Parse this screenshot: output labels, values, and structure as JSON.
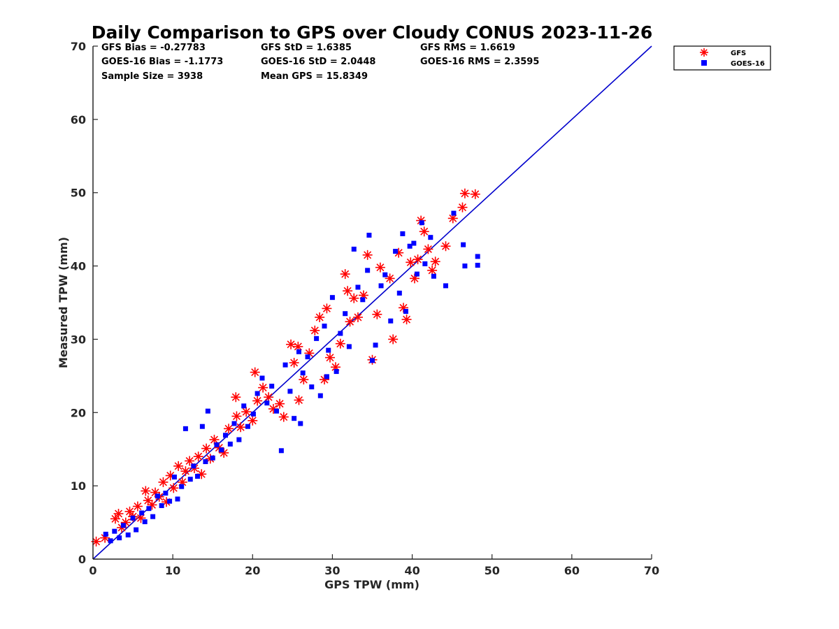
{
  "chart_data": {
    "type": "scatter",
    "title": "Daily Comparison to GPS over Cloudy CONUS 2023-11-26",
    "xlabel": "GPS TPW (mm)",
    "ylabel": "Measured TPW (mm)",
    "xlim": [
      0,
      70
    ],
    "ylim": [
      0,
      70
    ],
    "xticks": [
      "0",
      "10",
      "20",
      "30",
      "40",
      "50",
      "60",
      "70"
    ],
    "yticks": [
      "0",
      "10",
      "20",
      "30",
      "40",
      "50",
      "60",
      "70"
    ],
    "grid": false,
    "legend_position": "outside top-right",
    "stats": [
      [
        "GFS Bias = -0.27783",
        "GFS StD = 1.6385",
        "GFS RMS = 1.6619"
      ],
      [
        "GOES-16 Bias = -1.1773",
        "GOES-16 StD = 2.0448",
        "GOES-16 RMS = 2.3595"
      ],
      [
        "Sample Size = 3938",
        "Mean GPS = 15.8349",
        ""
      ]
    ],
    "reference_line": {
      "x": [
        0,
        70
      ],
      "y": [
        0,
        70
      ],
      "color": "#0000cc"
    },
    "series": [
      {
        "name": "GFS",
        "marker": "asterisk",
        "color": "#ff0000",
        "points": [
          [
            0.4,
            2.4
          ],
          [
            1.5,
            2.9
          ],
          [
            2.8,
            5.5
          ],
          [
            3.2,
            6.2
          ],
          [
            3.6,
            4.3
          ],
          [
            4.1,
            5.0
          ],
          [
            4.6,
            6.5
          ],
          [
            5.0,
            5.8
          ],
          [
            5.6,
            7.2
          ],
          [
            6.0,
            5.6
          ],
          [
            6.6,
            9.3
          ],
          [
            6.9,
            8.0
          ],
          [
            7.4,
            7.4
          ],
          [
            7.8,
            9.1
          ],
          [
            8.3,
            8.5
          ],
          [
            8.8,
            10.5
          ],
          [
            9.2,
            7.8
          ],
          [
            9.7,
            11.4
          ],
          [
            10.1,
            9.7
          ],
          [
            10.7,
            12.7
          ],
          [
            11.2,
            10.5
          ],
          [
            11.6,
            12.0
          ],
          [
            12.1,
            13.4
          ],
          [
            12.7,
            12.4
          ],
          [
            13.2,
            14.0
          ],
          [
            13.6,
            11.6
          ],
          [
            14.2,
            15.1
          ],
          [
            14.7,
            13.7
          ],
          [
            15.2,
            16.3
          ],
          [
            15.8,
            15.2
          ],
          [
            16.4,
            14.5
          ],
          [
            17.0,
            17.8
          ],
          [
            17.9,
            22.1
          ],
          [
            18.5,
            18.0
          ],
          [
            19.2,
            20.1
          ],
          [
            20.0,
            18.9
          ],
          [
            20.6,
            21.6
          ],
          [
            21.3,
            23.4
          ],
          [
            22.0,
            22.1
          ],
          [
            22.6,
            20.5
          ],
          [
            23.4,
            21.2
          ],
          [
            23.9,
            19.4
          ],
          [
            24.8,
            29.3
          ],
          [
            25.2,
            26.8
          ],
          [
            25.8,
            21.7
          ],
          [
            26.4,
            24.5
          ],
          [
            27.1,
            28.1
          ],
          [
            27.8,
            31.2
          ],
          [
            28.4,
            33.0
          ],
          [
            29.0,
            24.5
          ],
          [
            29.3,
            34.2
          ],
          [
            29.7,
            27.5
          ],
          [
            30.4,
            26.2
          ],
          [
            31.0,
            29.4
          ],
          [
            31.6,
            38.9
          ],
          [
            32.2,
            32.4
          ],
          [
            32.7,
            35.6
          ],
          [
            33.2,
            33.0
          ],
          [
            33.9,
            36.0
          ],
          [
            34.4,
            41.5
          ],
          [
            35.0,
            27.2
          ],
          [
            35.6,
            33.4
          ],
          [
            36.0,
            39.8
          ],
          [
            37.2,
            38.3
          ],
          [
            37.6,
            30.0
          ],
          [
            38.3,
            41.8
          ],
          [
            38.9,
            34.3
          ],
          [
            39.3,
            32.7
          ],
          [
            39.8,
            40.5
          ],
          [
            40.3,
            38.3
          ],
          [
            40.7,
            40.9
          ],
          [
            41.1,
            46.2
          ],
          [
            41.5,
            44.7
          ],
          [
            42.0,
            42.3
          ],
          [
            42.5,
            39.4
          ],
          [
            42.9,
            40.6
          ],
          [
            44.2,
            42.7
          ],
          [
            45.1,
            46.5
          ],
          [
            46.3,
            48.0
          ],
          [
            46.6,
            49.9
          ],
          [
            47.9,
            49.8
          ],
          [
            20.3,
            25.5
          ],
          [
            25.7,
            29.0
          ],
          [
            31.9,
            36.6
          ],
          [
            18.0,
            19.5
          ]
        ]
      },
      {
        "name": "GOES-16",
        "marker": "square",
        "color": "#0000ff",
        "points": [
          [
            1.6,
            3.4
          ],
          [
            2.2,
            2.5
          ],
          [
            2.7,
            3.8
          ],
          [
            3.3,
            2.9
          ],
          [
            3.8,
            4.6
          ],
          [
            4.4,
            3.3
          ],
          [
            5.0,
            5.6
          ],
          [
            5.4,
            4.0
          ],
          [
            6.1,
            6.3
          ],
          [
            6.5,
            5.1
          ],
          [
            7.0,
            6.9
          ],
          [
            7.5,
            5.8
          ],
          [
            8.1,
            8.6
          ],
          [
            8.6,
            7.3
          ],
          [
            9.1,
            9.0
          ],
          [
            9.6,
            7.9
          ],
          [
            10.2,
            11.2
          ],
          [
            10.6,
            8.2
          ],
          [
            11.1,
            9.9
          ],
          [
            11.6,
            17.8
          ],
          [
            12.2,
            10.9
          ],
          [
            12.6,
            12.7
          ],
          [
            13.1,
            11.3
          ],
          [
            13.7,
            18.1
          ],
          [
            14.1,
            13.3
          ],
          [
            14.4,
            20.2
          ],
          [
            15.0,
            13.8
          ],
          [
            15.5,
            15.6
          ],
          [
            16.1,
            14.9
          ],
          [
            16.6,
            16.9
          ],
          [
            17.2,
            15.7
          ],
          [
            17.7,
            18.5
          ],
          [
            18.3,
            16.3
          ],
          [
            18.9,
            20.9
          ],
          [
            19.4,
            18.1
          ],
          [
            20.1,
            19.8
          ],
          [
            20.6,
            22.6
          ],
          [
            21.2,
            24.7
          ],
          [
            21.8,
            21.3
          ],
          [
            22.4,
            23.6
          ],
          [
            23.0,
            20.2
          ],
          [
            23.6,
            14.8
          ],
          [
            24.1,
            26.5
          ],
          [
            24.7,
            22.9
          ],
          [
            25.2,
            19.2
          ],
          [
            25.8,
            28.3
          ],
          [
            26.3,
            25.4
          ],
          [
            26.9,
            27.6
          ],
          [
            27.4,
            23.5
          ],
          [
            28.0,
            30.1
          ],
          [
            28.5,
            22.3
          ],
          [
            29.0,
            31.8
          ],
          [
            29.5,
            28.5
          ],
          [
            30.0,
            35.7
          ],
          [
            30.5,
            25.6
          ],
          [
            31.0,
            30.8
          ],
          [
            31.6,
            33.5
          ],
          [
            32.1,
            29.0
          ],
          [
            32.7,
            42.3
          ],
          [
            33.2,
            37.1
          ],
          [
            33.8,
            35.4
          ],
          [
            34.4,
            39.4
          ],
          [
            35.0,
            27.1
          ],
          [
            35.4,
            29.2
          ],
          [
            36.1,
            37.3
          ],
          [
            36.6,
            38.8
          ],
          [
            37.3,
            32.5
          ],
          [
            37.9,
            42.0
          ],
          [
            38.4,
            36.3
          ],
          [
            38.8,
            44.4
          ],
          [
            39.2,
            33.8
          ],
          [
            39.7,
            42.7
          ],
          [
            40.2,
            43.1
          ],
          [
            40.6,
            38.9
          ],
          [
            41.2,
            45.9
          ],
          [
            41.6,
            40.3
          ],
          [
            42.3,
            43.9
          ],
          [
            42.7,
            38.6
          ],
          [
            44.2,
            37.3
          ],
          [
            45.2,
            47.2
          ],
          [
            46.4,
            42.9
          ],
          [
            46.6,
            40.0
          ],
          [
            48.2,
            41.3
          ],
          [
            48.2,
            40.1
          ],
          [
            34.6,
            44.2
          ],
          [
            29.3,
            24.9
          ],
          [
            26.0,
            18.5
          ]
        ]
      }
    ]
  }
}
